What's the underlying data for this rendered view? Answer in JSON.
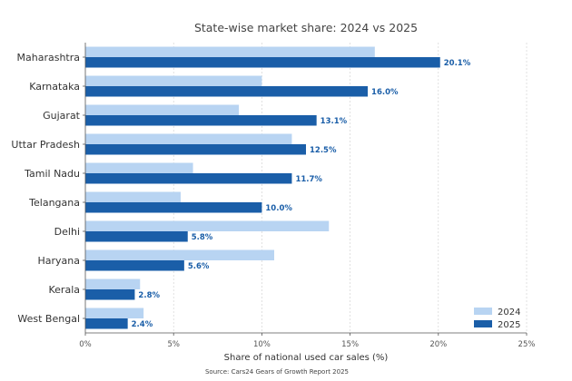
{
  "chart_data": {
    "type": "bar",
    "orientation": "horizontal",
    "title": "State-wise market share: 2024 vs 2025",
    "xlabel": "Share of national used car sales (%)",
    "ylabel": "",
    "source": "Source: Cars24 Gears of Growth Report 2025",
    "xlim": [
      0,
      25
    ],
    "xticks": [
      0,
      5,
      10,
      15,
      20,
      25
    ],
    "xtick_labels": [
      "0%",
      "5%",
      "10%",
      "15%",
      "20%",
      "25%"
    ],
    "grid": true,
    "legend_position": "bottom-right",
    "categories": [
      "Maharashtra",
      "Karnataka",
      "Gujarat",
      "Uttar Pradesh",
      "Tamil Nadu",
      "Telangana",
      "Delhi",
      "Haryana",
      "Kerala",
      "West Bengal"
    ],
    "series": [
      {
        "name": "2024",
        "color": "#b8d4f2",
        "values": [
          16.4,
          10.0,
          8.7,
          11.7,
          6.1,
          5.4,
          13.8,
          10.7,
          3.1,
          3.3
        ]
      },
      {
        "name": "2025",
        "color": "#1a5ea8",
        "values": [
          20.1,
          16.0,
          13.1,
          12.5,
          11.7,
          10.0,
          5.8,
          5.6,
          2.8,
          2.4
        ],
        "data_labels": [
          "20.1%",
          "16.0%",
          "13.1%",
          "12.5%",
          "11.7%",
          "10.0%",
          "5.8%",
          "5.6%",
          "2.8%",
          "2.4%"
        ]
      }
    ]
  }
}
